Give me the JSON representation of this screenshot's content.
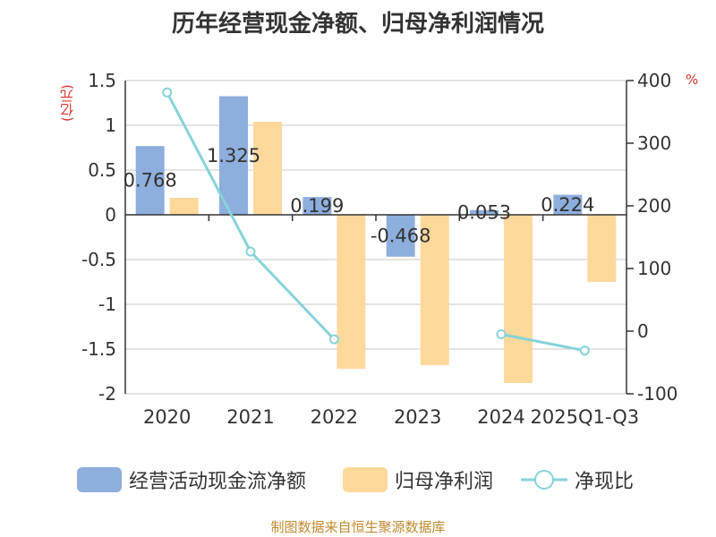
{
  "title": "历年经营现金净额、归母净利润情况",
  "source": "制图数据来自恒生聚源数据库",
  "chart_data": {
    "type": "bar",
    "title": "历年经营现金净额、归母净利润情况",
    "categories": [
      "2020",
      "2021",
      "2022",
      "2023",
      "2024",
      "2025Q1-Q3"
    ],
    "left_axis": {
      "unit": "(亿元)",
      "ylim": [
        -2,
        1.5
      ],
      "ticks": [
        "1.5",
        "1",
        "0.5",
        "0",
        "-0.5",
        "-1",
        "-1.5",
        "-2"
      ]
    },
    "right_axis": {
      "unit": "%",
      "ylim": [
        -100,
        400
      ],
      "ticks": [
        "400",
        "300",
        "200",
        "100",
        "0",
        "-100"
      ]
    },
    "series": [
      {
        "name": "经营活动现金流净额",
        "type": "bar",
        "axis": "left",
        "color": "#8eaedd",
        "values": [
          0.768,
          1.325,
          0.199,
          -0.468,
          0.053,
          0.224
        ],
        "labels": [
          "0.768",
          "1.325",
          "0.199",
          "-0.468",
          "0.053",
          "0.224"
        ]
      },
      {
        "name": "归母净利润",
        "type": "bar",
        "axis": "left",
        "color": "#fdd89b",
        "values": [
          0.19,
          1.04,
          -1.72,
          -1.68,
          -1.88,
          -0.75
        ]
      },
      {
        "name": "净现比",
        "type": "line",
        "axis": "right",
        "color": "#86d3d8",
        "values": [
          381,
          127,
          -13,
          null,
          -5,
          -31
        ]
      }
    ],
    "grid": true,
    "legend_position": "bottom"
  }
}
